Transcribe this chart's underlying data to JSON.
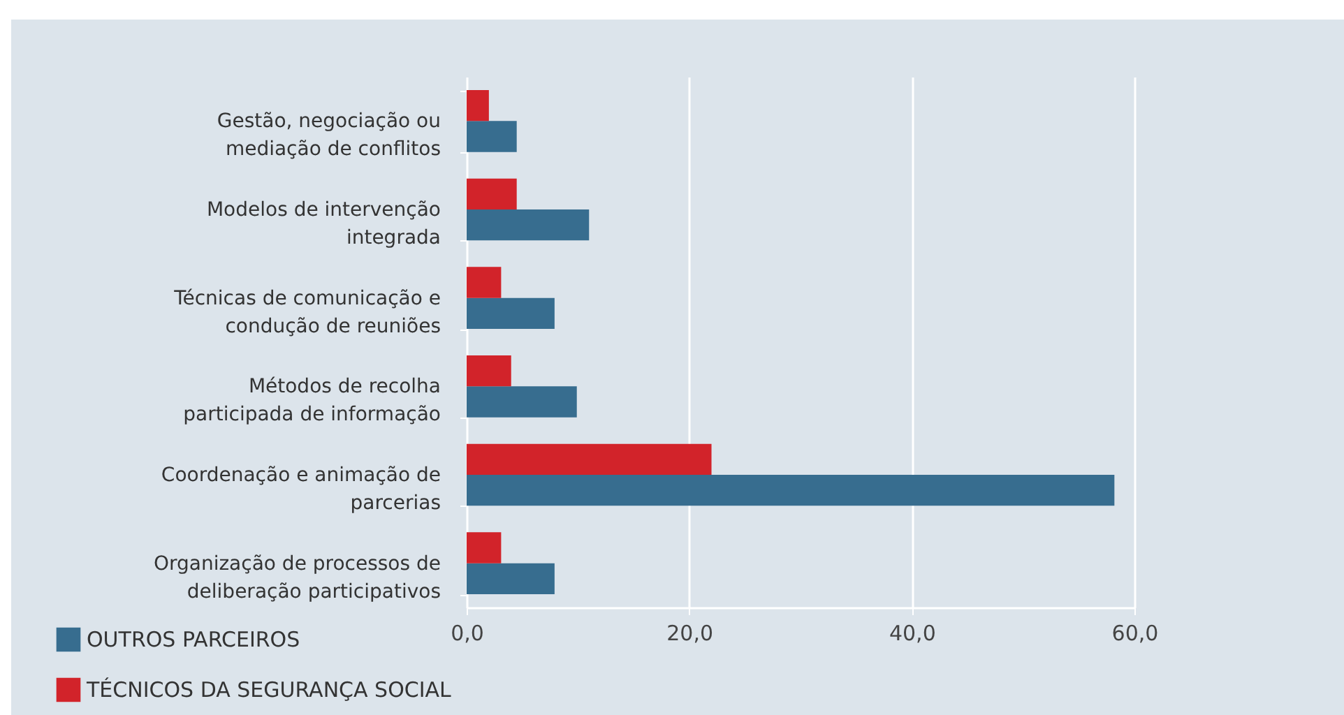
{
  "chart_data": {
    "type": "bar",
    "orientation": "horizontal",
    "categories": [
      "Gestão, negociação ou mediação de conflitos",
      "Modelos de intervenção integrada",
      "Técnicas de comunicação e condução de reuniões",
      "Métodos de recolha participada de informação",
      "Coordenação e animação de parcerias",
      "Organização de processos de deliberação participativos"
    ],
    "series": [
      {
        "name": "OUTROS PARCEIROS",
        "color": "#376d8f",
        "values": [
          4.5,
          11.0,
          7.9,
          9.9,
          58.2,
          7.9
        ]
      },
      {
        "name": "TÉCNICOS DA SEGURANÇA SOCIAL",
        "color": "#d2232a",
        "values": [
          2.0,
          4.5,
          3.1,
          4.0,
          22.0,
          3.1
        ]
      }
    ],
    "xlim": [
      0,
      60
    ],
    "xticks": [
      {
        "value": 0,
        "label": "0,0"
      },
      {
        "value": 20,
        "label": "20,0"
      },
      {
        "value": 40,
        "label": "40,0"
      },
      {
        "value": 60,
        "label": "60,0"
      }
    ],
    "grid": "x",
    "legend": "bottom left"
  }
}
